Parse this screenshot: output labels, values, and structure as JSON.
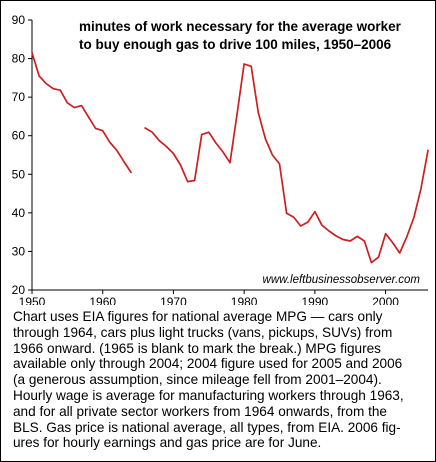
{
  "chart_data": {
    "type": "line",
    "title_lines": [
      "minutes of work necessary for the average worker",
      "to buy enough gas to drive 100 miles, 1950–2006"
    ],
    "xlabel": "",
    "ylabel": "",
    "xlim": [
      1950,
      2006
    ],
    "ylim": [
      20,
      90
    ],
    "x_ticks": [
      1950,
      1960,
      1970,
      1980,
      1990,
      2000
    ],
    "y_ticks": [
      20,
      30,
      40,
      50,
      60,
      70,
      80,
      90
    ],
    "grid": false,
    "line_color": "#cc1f1f",
    "annotation": "www.leftbusinessobserver.com",
    "series": [
      {
        "segment": "1950-1964",
        "x": [
          1950,
          1951,
          1952,
          1953,
          1954,
          1955,
          1956,
          1957,
          1958,
          1959,
          1960,
          1961,
          1962,
          1963,
          1964
        ],
        "y": [
          81.5,
          75.5,
          73.5,
          72.2,
          71.8,
          68.5,
          67.3,
          67.8,
          64.8,
          61.9,
          61.3,
          58.3,
          56.2,
          53.3,
          50.5
        ]
      },
      {
        "segment": "1966-2006",
        "x": [
          1966,
          1967,
          1968,
          1969,
          1970,
          1971,
          1972,
          1973,
          1974,
          1975,
          1976,
          1977,
          1978,
          1979,
          1980,
          1981,
          1982,
          1983,
          1984,
          1985,
          1986,
          1987,
          1988,
          1989,
          1990,
          1991,
          1992,
          1993,
          1994,
          1995,
          1996,
          1997,
          1998,
          1999,
          2000,
          2001,
          2002,
          2003,
          2004,
          2005,
          2006
        ],
        "y": [
          62.0,
          60.9,
          58.7,
          57.2,
          55.4,
          52.4,
          48.1,
          48.4,
          60.3,
          60.9,
          58.1,
          55.8,
          53.0,
          65.7,
          78.6,
          78.0,
          66.0,
          59.2,
          55.0,
          52.7,
          39.9,
          38.9,
          36.6,
          37.6,
          40.3,
          36.8,
          35.3,
          34.0,
          33.1,
          32.7,
          33.9,
          32.7,
          27.1,
          28.5,
          34.6,
          32.3,
          29.6,
          33.8,
          38.8,
          46.2,
          56.2
        ]
      }
    ]
  },
  "caption": "Chart uses EIA figures for national average MPG — cars only\nthrough 1964, cars plus light trucks (vans, pickups, SUVs) from\n1966 onward. (1965 is blank to mark the break.) MPG figures\navailable only through 2004; 2004 figure used for 2005 and 2006\n(a generous assumption, since mileage fell from 2001–2004).\nHourly wage is average for manufacturing workers through 1963,\nand for all private sector workers from 1964 onwards, from the\nBLS. Gas price is national average, all types, from EIA. 2006 fig-\nures for hourly earnings and gas price are for June."
}
